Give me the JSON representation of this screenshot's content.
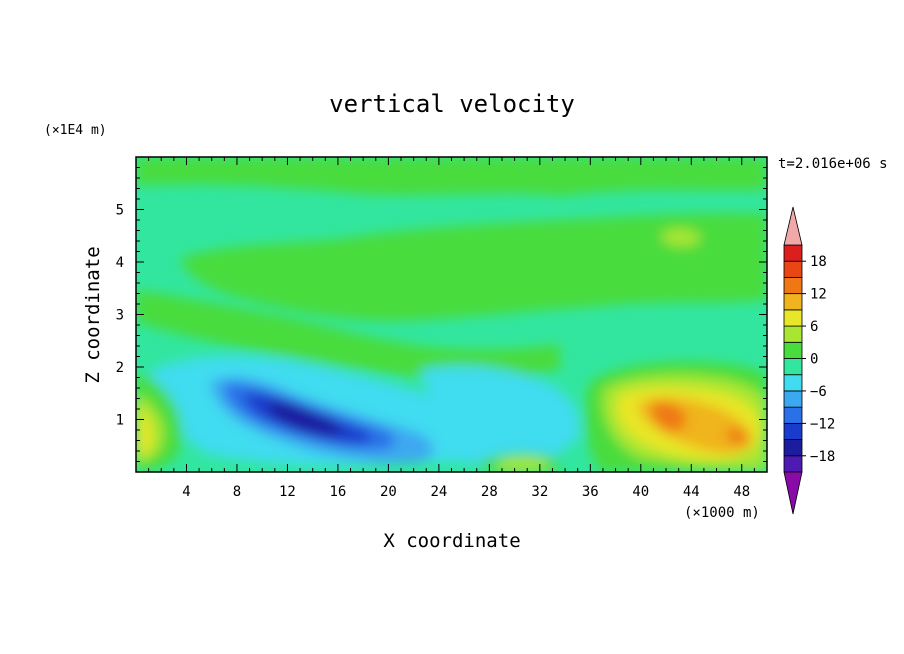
{
  "chart_data": {
    "type": "heatmap",
    "title": "vertical velocity",
    "time_label": "t=2.016e+06 s",
    "xlabel": "X coordinate",
    "ylabel": "Z coordinate",
    "x_unit": "(×1000 m)",
    "y_unit": "(×1E4 m)",
    "xlim": [
      0,
      50
    ],
    "ylim": [
      0,
      6
    ],
    "x_ticks": [
      4,
      8,
      12,
      16,
      20,
      24,
      28,
      32,
      36,
      40,
      44,
      48
    ],
    "x_tick_labels": [
      "4",
      "8",
      "12",
      "16",
      "20",
      "24",
      "28",
      "32",
      "36",
      "40",
      "44",
      "48"
    ],
    "y_ticks": [
      1,
      2,
      3,
      4,
      5
    ],
    "y_tick_labels": [
      "1",
      "2",
      "3",
      "4",
      "5"
    ],
    "colorbar": {
      "levels": [
        -21,
        -18,
        -15,
        -12,
        -9,
        -6,
        -3,
        0,
        3,
        6,
        9,
        12,
        15,
        18,
        21
      ],
      "label_values": [
        18,
        12,
        6,
        0,
        -6,
        -12,
        -18
      ],
      "labels": [
        "18",
        "12",
        "6",
        "0",
        "−6",
        "−12",
        "−18"
      ],
      "colors": [
        "#8a0aa8",
        "#4d1ab4",
        "#1c1c9e",
        "#1a3ccc",
        "#2a70e8",
        "#3ca8f0",
        "#40dcf0",
        "#32e6a0",
        "#48dc3c",
        "#a8e632",
        "#e8e628",
        "#f0b41e",
        "#f07814",
        "#e84614",
        "#dc1e1e",
        "#f0a8a8"
      ]
    },
    "features": [
      {
        "x": 13.5,
        "z": 1.05,
        "value": -19
      },
      {
        "x": 1.0,
        "z": 0.85,
        "value": 6
      },
      {
        "x": 43.0,
        "z": 1.05,
        "value": 12
      },
      {
        "x": 47.0,
        "z": 0.75,
        "value": 12
      },
      {
        "x": 29.0,
        "z": 0.25,
        "value": 3
      }
    ]
  }
}
